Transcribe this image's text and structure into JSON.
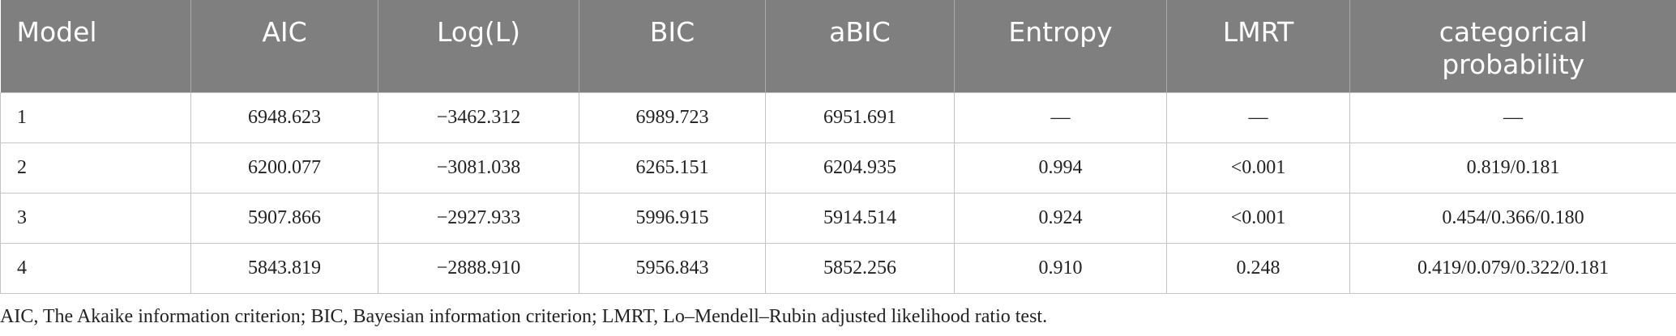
{
  "table": {
    "header": [
      "Model",
      "AIC",
      "Log(L)",
      "BIC",
      "aBIC",
      "Entropy",
      "LMRT",
      "categorical probability"
    ],
    "rows": [
      [
        "1",
        "6948.623",
        "−3462.312",
        "6989.723",
        "6951.691",
        "—",
        "—",
        "—"
      ],
      [
        "2",
        "6200.077",
        "−3081.038",
        "6265.151",
        "6204.935",
        "0.994",
        "<0.001",
        "0.819/0.181"
      ],
      [
        "3",
        "5907.866",
        "−2927.933",
        "5996.915",
        "5914.514",
        "0.924",
        "<0.001",
        "0.454/0.366/0.180"
      ],
      [
        "4",
        "5843.819",
        "−2888.910",
        "5956.843",
        "5852.256",
        "0.910",
        "0.248",
        "0.419/0.079/0.322/0.181"
      ]
    ]
  },
  "footnote": "AIC, The Akaike information criterion; BIC, Bayesian information criterion; LMRT, Lo–Mendell–Rubin adjusted likelihood ratio test."
}
